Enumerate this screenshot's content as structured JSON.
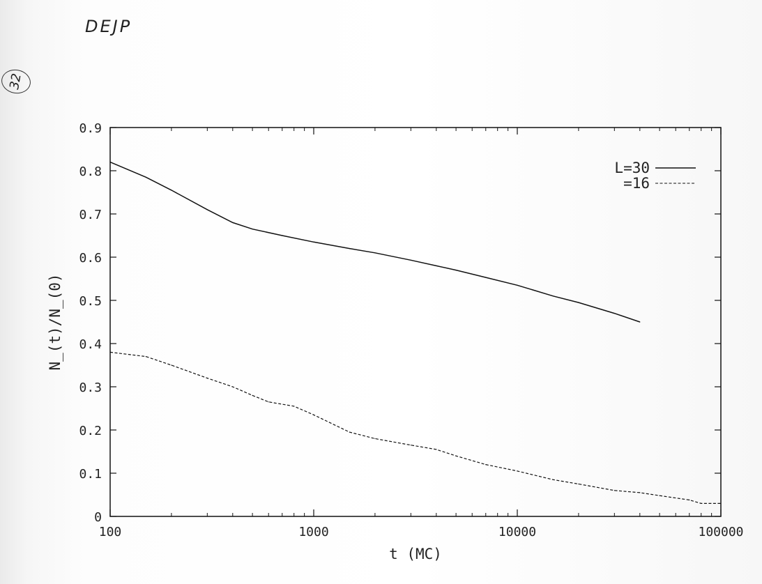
{
  "annotations": {
    "header": "DEJP",
    "page_number": "32"
  },
  "chart_data": {
    "type": "line",
    "title": "",
    "xlabel": "t (MC)",
    "ylabel": "N_(t)/N_(0)",
    "x_scale": "log",
    "xlim": [
      100,
      100000
    ],
    "ylim": [
      0,
      0.9
    ],
    "x_ticks": [
      {
        "value": 100,
        "label": "100"
      },
      {
        "value": 1000,
        "label": "1000"
      },
      {
        "value": 10000,
        "label": "10000"
      },
      {
        "value": 100000,
        "label": "100000"
      }
    ],
    "y_ticks": [
      {
        "value": 0,
        "label": "0"
      },
      {
        "value": 0.1,
        "label": "0.1"
      },
      {
        "value": 0.2,
        "label": "0.2"
      },
      {
        "value": 0.3,
        "label": "0.3"
      },
      {
        "value": 0.4,
        "label": "0.4"
      },
      {
        "value": 0.5,
        "label": "0.5"
      },
      {
        "value": 0.6,
        "label": "0.6"
      },
      {
        "value": 0.7,
        "label": "0.7"
      },
      {
        "value": 0.8,
        "label": "0.8"
      },
      {
        "value": 0.9,
        "label": "0.9"
      }
    ],
    "grid": false,
    "legend_position": "top-right",
    "series": [
      {
        "name": "L=30",
        "style": "solid",
        "x": [
          100,
          150,
          200,
          300,
          400,
          500,
          700,
          1000,
          1500,
          2000,
          3000,
          4000,
          5000,
          7000,
          10000,
          15000,
          20000,
          30000,
          40000
        ],
        "y": [
          0.82,
          0.785,
          0.755,
          0.71,
          0.68,
          0.665,
          0.65,
          0.635,
          0.62,
          0.61,
          0.593,
          0.58,
          0.57,
          0.553,
          0.535,
          0.51,
          0.495,
          0.47,
          0.45
        ]
      },
      {
        "name": "=16",
        "style": "dashed",
        "x": [
          100,
          150,
          200,
          300,
          400,
          500,
          600,
          800,
          1000,
          1500,
          2000,
          3000,
          4000,
          5000,
          7000,
          10000,
          15000,
          20000,
          30000,
          40000,
          50000,
          70000,
          80000,
          100000
        ],
        "y": [
          0.38,
          0.37,
          0.35,
          0.32,
          0.3,
          0.28,
          0.265,
          0.255,
          0.235,
          0.195,
          0.18,
          0.165,
          0.155,
          0.14,
          0.12,
          0.105,
          0.085,
          0.075,
          0.06,
          0.055,
          0.048,
          0.038,
          0.03,
          0.03
        ]
      }
    ]
  }
}
